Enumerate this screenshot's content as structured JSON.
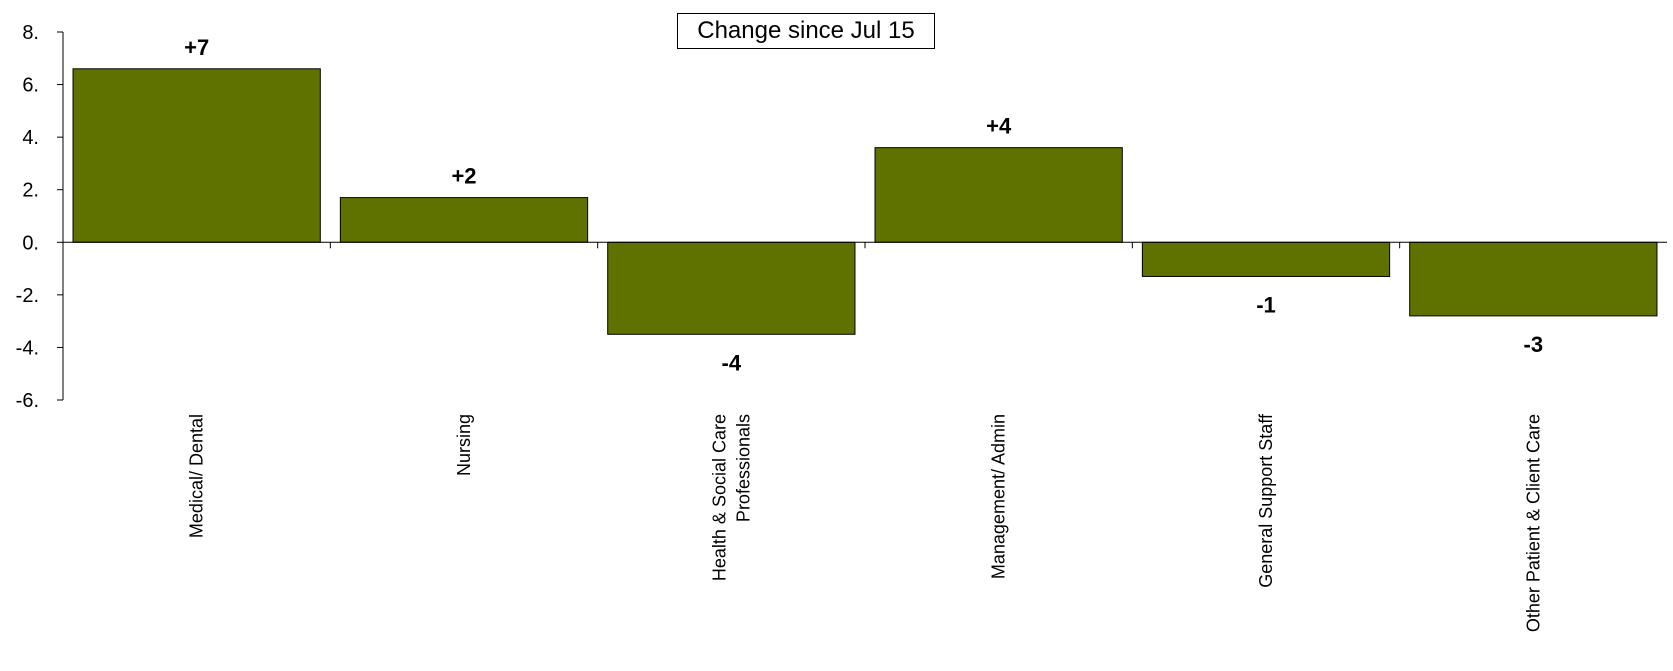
{
  "chart_data": {
    "type": "bar",
    "title": "Change since Jul 15",
    "xlabel": "",
    "ylabel": "",
    "categories": [
      [
        "Medical/ Dental"
      ],
      [
        "Nursing"
      ],
      [
        "Health & Social Care",
        "Professionals"
      ],
      [
        "Management/ Admin"
      ],
      [
        "General Support Staff"
      ],
      [
        "Other Patient & Client Care"
      ]
    ],
    "values": [
      6.6,
      1.7,
      -3.5,
      3.6,
      -1.3,
      -2.8
    ],
    "data_labels": [
      "+7",
      "+2",
      "-4",
      "+4",
      "-1",
      "-3"
    ],
    "ylim": [
      -6,
      8
    ],
    "yticks": [
      8,
      6,
      4,
      2,
      0,
      -2,
      -4,
      -6
    ],
    "ytick_labels": [
      "8.",
      "6.",
      "4.",
      "2.",
      "0.",
      "-2.",
      "-4.",
      "-6."
    ],
    "bar_color": "#5f7200",
    "grid": false,
    "legend": "none"
  }
}
